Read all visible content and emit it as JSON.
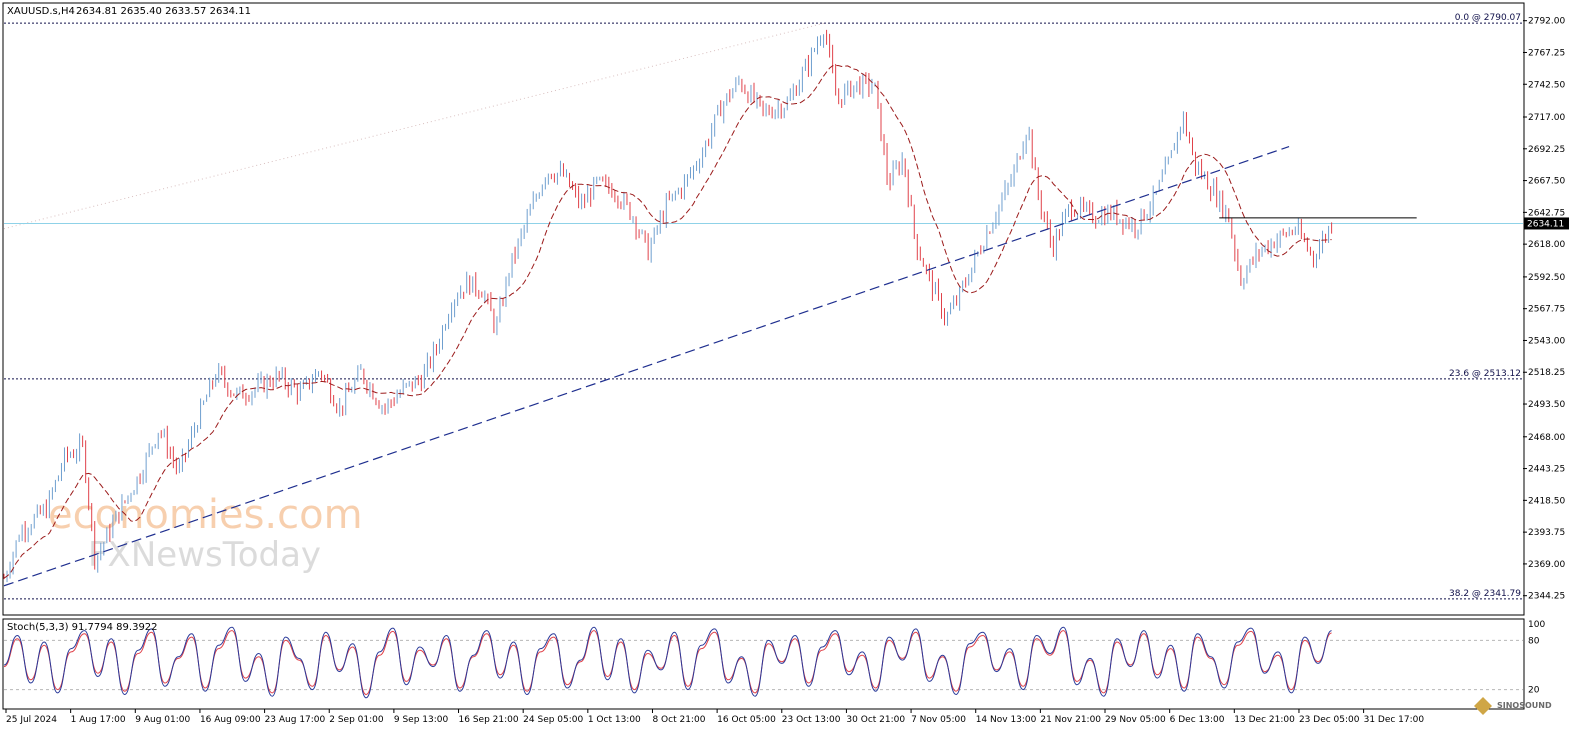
{
  "header": {
    "symbol": "XAUUSD.s,H4",
    "ohlc": "2634.81 2635.40 2633.57 2634.11"
  },
  "watermark": {
    "line1": "economies.com",
    "line2": "FXNewsToday"
  },
  "corner_logo": "SINOSOUND",
  "colors": {
    "bull": "#6f9fcf",
    "bear": "#e0424a",
    "ma": "#9b1b1b",
    "trend": "#1f2f8f",
    "fib": "#10104a",
    "bid": "#8fd2e8",
    "stoch_main": "#2a3a9a",
    "stoch_signal": "#e0424a"
  },
  "chart_data": [
    {
      "type": "candlestick",
      "title": "XAUUSD.s,H4",
      "ylim": [
        2330,
        2805
      ],
      "y_ticks": [
        "2792.00",
        "2767.25",
        "2742.50",
        "2717.00",
        "2692.25",
        "2667.50",
        "2642.75",
        "2618.00",
        "2592.50",
        "2567.75",
        "2543.00",
        "2518.25",
        "2493.50",
        "2468.00",
        "2443.25",
        "2418.50",
        "2393.75",
        "2369.00",
        "2344.25"
      ],
      "x_ticks": [
        "25 Jul 2024",
        "1 Aug 17:00",
        "9 Aug 01:00",
        "16 Aug 09:00",
        "23 Aug 17:00",
        "2 Sep 01:00",
        "9 Sep 13:00",
        "16 Sep 21:00",
        "24 Sep 05:00",
        "1 Oct 13:00",
        "8 Oct 21:00",
        "16 Oct 05:00",
        "23 Oct 13:00",
        "30 Oct 21:00",
        "7 Nov 05:00",
        "14 Nov 13:00",
        "21 Nov 21:00",
        "29 Nov 05:00",
        "6 Dec 13:00",
        "13 Dec 21:00",
        "23 Dec 05:00",
        "31 Dec 17:00"
      ],
      "current_price": "2634.11",
      "fib_levels": [
        {
          "label": "0.0 @ 2790.07",
          "value": 2790.07
        },
        {
          "label": "23.6 @ 2513.12",
          "value": 2513.12
        },
        {
          "label": "38.2 @ 2341.79",
          "value": 2341.79
        }
      ],
      "resistance_line": {
        "value": 2638.5,
        "from": 0.8,
        "to": 0.93
      },
      "trendline": {
        "points": [
          [
            0,
            2352
          ],
          [
            0.846,
            2694
          ]
        ]
      },
      "price_path": [
        [
          0,
          2358
        ],
        [
          0.011,
          2395
        ],
        [
          0.028,
          2412
        ],
        [
          0.04,
          2452
        ],
        [
          0.052,
          2460
        ],
        [
          0.06,
          2372
        ],
        [
          0.075,
          2408
        ],
        [
          0.09,
          2440
        ],
        [
          0.102,
          2475
        ],
        [
          0.115,
          2440
        ],
        [
          0.127,
          2480
        ],
        [
          0.14,
          2518
        ],
        [
          0.153,
          2500
        ],
        [
          0.165,
          2505
        ],
        [
          0.18,
          2515
        ],
        [
          0.195,
          2502
        ],
        [
          0.208,
          2520
        ],
        [
          0.221,
          2490
        ],
        [
          0.235,
          2518
        ],
        [
          0.25,
          2490
        ],
        [
          0.263,
          2505
        ],
        [
          0.275,
          2513
        ],
        [
          0.285,
          2538
        ],
        [
          0.295,
          2575
        ],
        [
          0.305,
          2588
        ],
        [
          0.315,
          2582
        ],
        [
          0.324,
          2552
        ],
        [
          0.333,
          2600
        ],
        [
          0.346,
          2642
        ],
        [
          0.357,
          2675
        ],
        [
          0.368,
          2672
        ],
        [
          0.38,
          2648
        ],
        [
          0.39,
          2665
        ],
        [
          0.402,
          2660
        ],
        [
          0.414,
          2640
        ],
        [
          0.424,
          2612
        ],
        [
          0.436,
          2648
        ],
        [
          0.448,
          2665
        ],
        [
          0.46,
          2690
        ],
        [
          0.472,
          2725
        ],
        [
          0.484,
          2745
        ],
        [
          0.5,
          2720
        ],
        [
          0.516,
          2728
        ],
        [
          0.53,
          2760
        ],
        [
          0.54,
          2788
        ],
        [
          0.548,
          2730
        ],
        [
          0.56,
          2742
        ],
        [
          0.573,
          2742
        ],
        [
          0.582,
          2665
        ],
        [
          0.592,
          2685
        ],
        [
          0.6,
          2620
        ],
        [
          0.61,
          2588
        ],
        [
          0.62,
          2560
        ],
        [
          0.628,
          2575
        ],
        [
          0.64,
          2608
        ],
        [
          0.652,
          2640
        ],
        [
          0.664,
          2670
        ],
        [
          0.674,
          2712
        ],
        [
          0.68,
          2660
        ],
        [
          0.69,
          2615
        ],
        [
          0.702,
          2648
        ],
        [
          0.716,
          2640
        ],
        [
          0.73,
          2642
        ],
        [
          0.745,
          2632
        ],
        [
          0.758,
          2655
        ],
        [
          0.768,
          2685
        ],
        [
          0.776,
          2718
        ],
        [
          0.784,
          2680
        ],
        [
          0.796,
          2660
        ],
        [
          0.806,
          2640
        ],
        [
          0.814,
          2590
        ],
        [
          0.826,
          2612
        ],
        [
          0.838,
          2622
        ],
        [
          0.85,
          2630
        ],
        [
          0.862,
          2608
        ],
        [
          0.874,
          2634
        ]
      ]
    },
    {
      "type": "line",
      "title": "Stoch(5,3,3) 91.7794 89.3922",
      "ylim": [
        0,
        100
      ],
      "y_ticks": [
        "100",
        "80",
        "20"
      ],
      "levels": [
        80,
        20
      ],
      "series": [
        {
          "values": [
            50,
            86,
            28,
            78,
            16,
            70,
            92,
            36,
            82,
            14,
            68,
            94,
            24,
            60,
            88,
            18,
            74,
            96,
            30,
            64,
            12,
            84,
            58,
            20,
            90,
            42,
            76,
            10,
            66,
            95,
            26,
            72,
            48,
            86,
            18,
            62,
            92,
            34,
            78,
            14,
            70,
            88,
            22,
            56,
            96,
            32,
            82,
            16,
            68,
            44,
            90,
            20,
            74,
            94,
            28,
            60,
            12,
            80,
            52,
            86,
            24,
            72,
            92,
            38,
            66,
            18,
            84,
            56,
            94,
            30,
            62,
            14,
            76,
            90,
            42,
            70,
            20,
            86,
            64,
            96,
            26,
            58,
            12,
            82,
            48,
            92,
            34,
            74,
            18,
            88,
            60,
            22,
            78,
            95,
            40,
            66,
            16,
            84,
            52,
            92
          ]
        },
        {
          "values": [
            48,
            82,
            32,
            74,
            20,
            66,
            88,
            40,
            78,
            18,
            64,
            90,
            28,
            58,
            84,
            22,
            70,
            92,
            34,
            60,
            16,
            80,
            56,
            24,
            86,
            44,
            72,
            14,
            62,
            91,
            30,
            68,
            50,
            82,
            22,
            60,
            88,
            38,
            74,
            18,
            66,
            84,
            26,
            54,
            92,
            36,
            78,
            20,
            64,
            46,
            86,
            24,
            70,
            90,
            32,
            58,
            16,
            76,
            54,
            82,
            28,
            68,
            88,
            42,
            62,
            22,
            80,
            58,
            90,
            34,
            60,
            18,
            72,
            86,
            44,
            66,
            24,
            82,
            62,
            92,
            30,
            56,
            16,
            78,
            50,
            88,
            38,
            70,
            22,
            84,
            58,
            26,
            74,
            91,
            42,
            62,
            20,
            80,
            54,
            89
          ]
        }
      ]
    }
  ]
}
